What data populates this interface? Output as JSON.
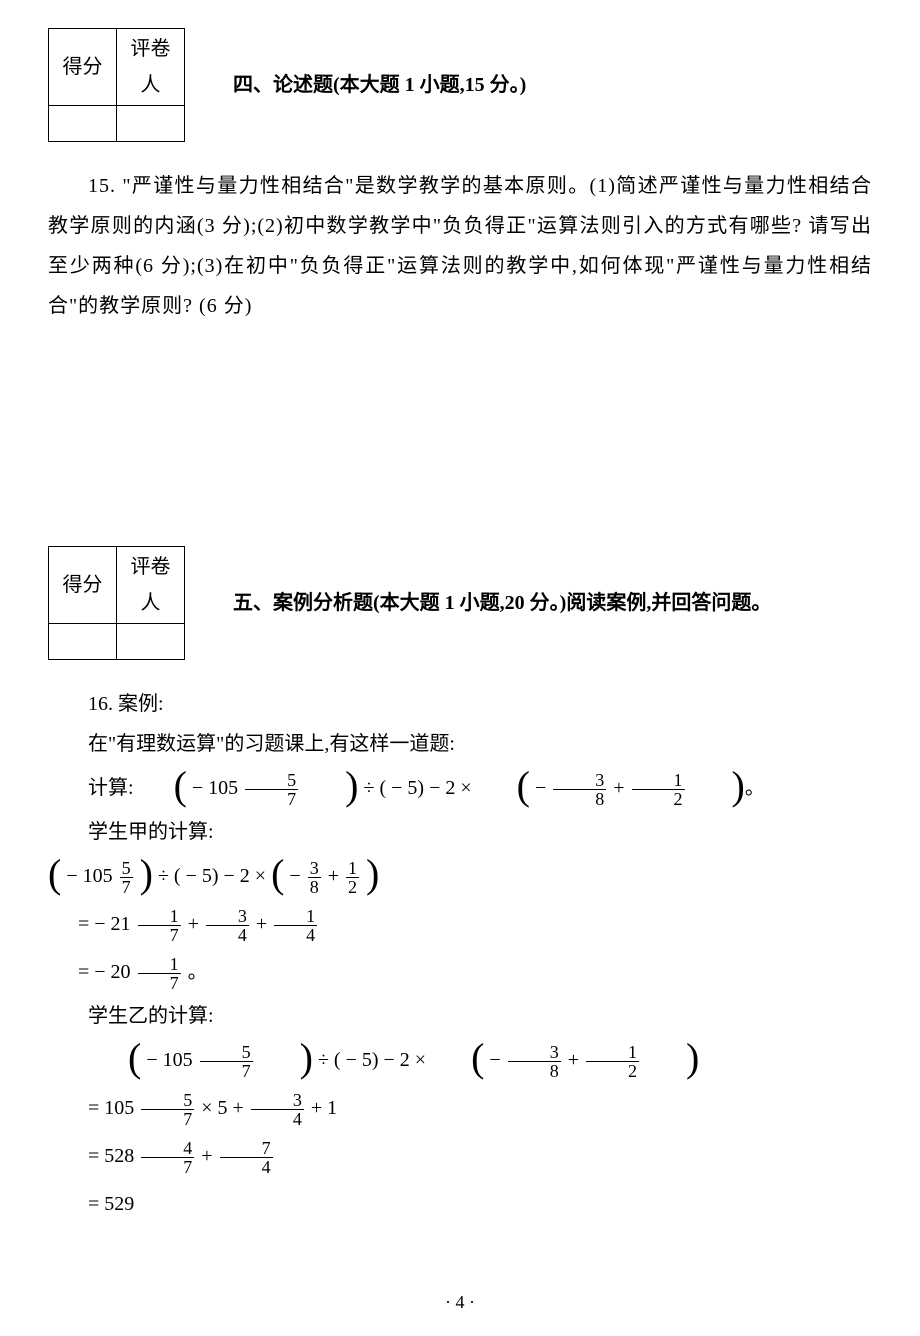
{
  "score_box": {
    "col1": "得分",
    "col2": "评卷人"
  },
  "section4": {
    "title": "四、论述题(本大题 1 小题,15 分。)",
    "q15": {
      "num": "15.",
      "text": "\"严谨性与量力性相结合\"是数学教学的基本原则。(1)简述严谨性与量力性相结合教学原则的内涵(3 分);(2)初中数学教学中\"负负得正\"运算法则引入的方式有哪些? 请写出至少两种(6 分);(3)在初中\"负负得正\"运算法则的教学中,如何体现\"严谨性与量力性相结合\"的教学原则? (6 分)"
    }
  },
  "section5": {
    "title": "五、案例分析题(本大题 1 小题,20 分。)阅读案例,并回答问题。",
    "q16": {
      "num": "16.",
      "case_label": "案例:",
      "intro": "在\"有理数运算\"的习题课上,有这样一道题:",
      "compute_label": "计算",
      "student_a": "学生甲的计算:",
      "student_b": "学生乙的计算:",
      "expr": {
        "n1": "− 105",
        "f1n": "5",
        "f1d": "7",
        "div": "÷",
        "n2": "( − 5)",
        "minus2": "− 2 ×",
        "f2n": "3",
        "f2d": "8",
        "plus": "+",
        "f3n": "1",
        "f3d": "2"
      },
      "a_step1": {
        "eq": "= − 21",
        "f1n": "1",
        "f1d": "7",
        "p1": "+",
        "f2n": "3",
        "f2d": "4",
        "p2": "+",
        "f3n": "1",
        "f3d": "4"
      },
      "a_step2": {
        "eq": "= − 20",
        "f1n": "1",
        "f1d": "7",
        "end": "。"
      },
      "b_step1": {
        "eq": "= 105",
        "f1n": "5",
        "f1d": "7",
        "mul": "× 5 +",
        "f2n": "3",
        "f2d": "4",
        "plus1": "+ 1"
      },
      "b_step2": {
        "eq": "= 528",
        "f1n": "4",
        "f1d": "7",
        "plus": "+",
        "f2n": "7",
        "f2d": "4"
      },
      "b_step3": {
        "eq": "= 529"
      }
    }
  },
  "page_num": "· 4 ·"
}
